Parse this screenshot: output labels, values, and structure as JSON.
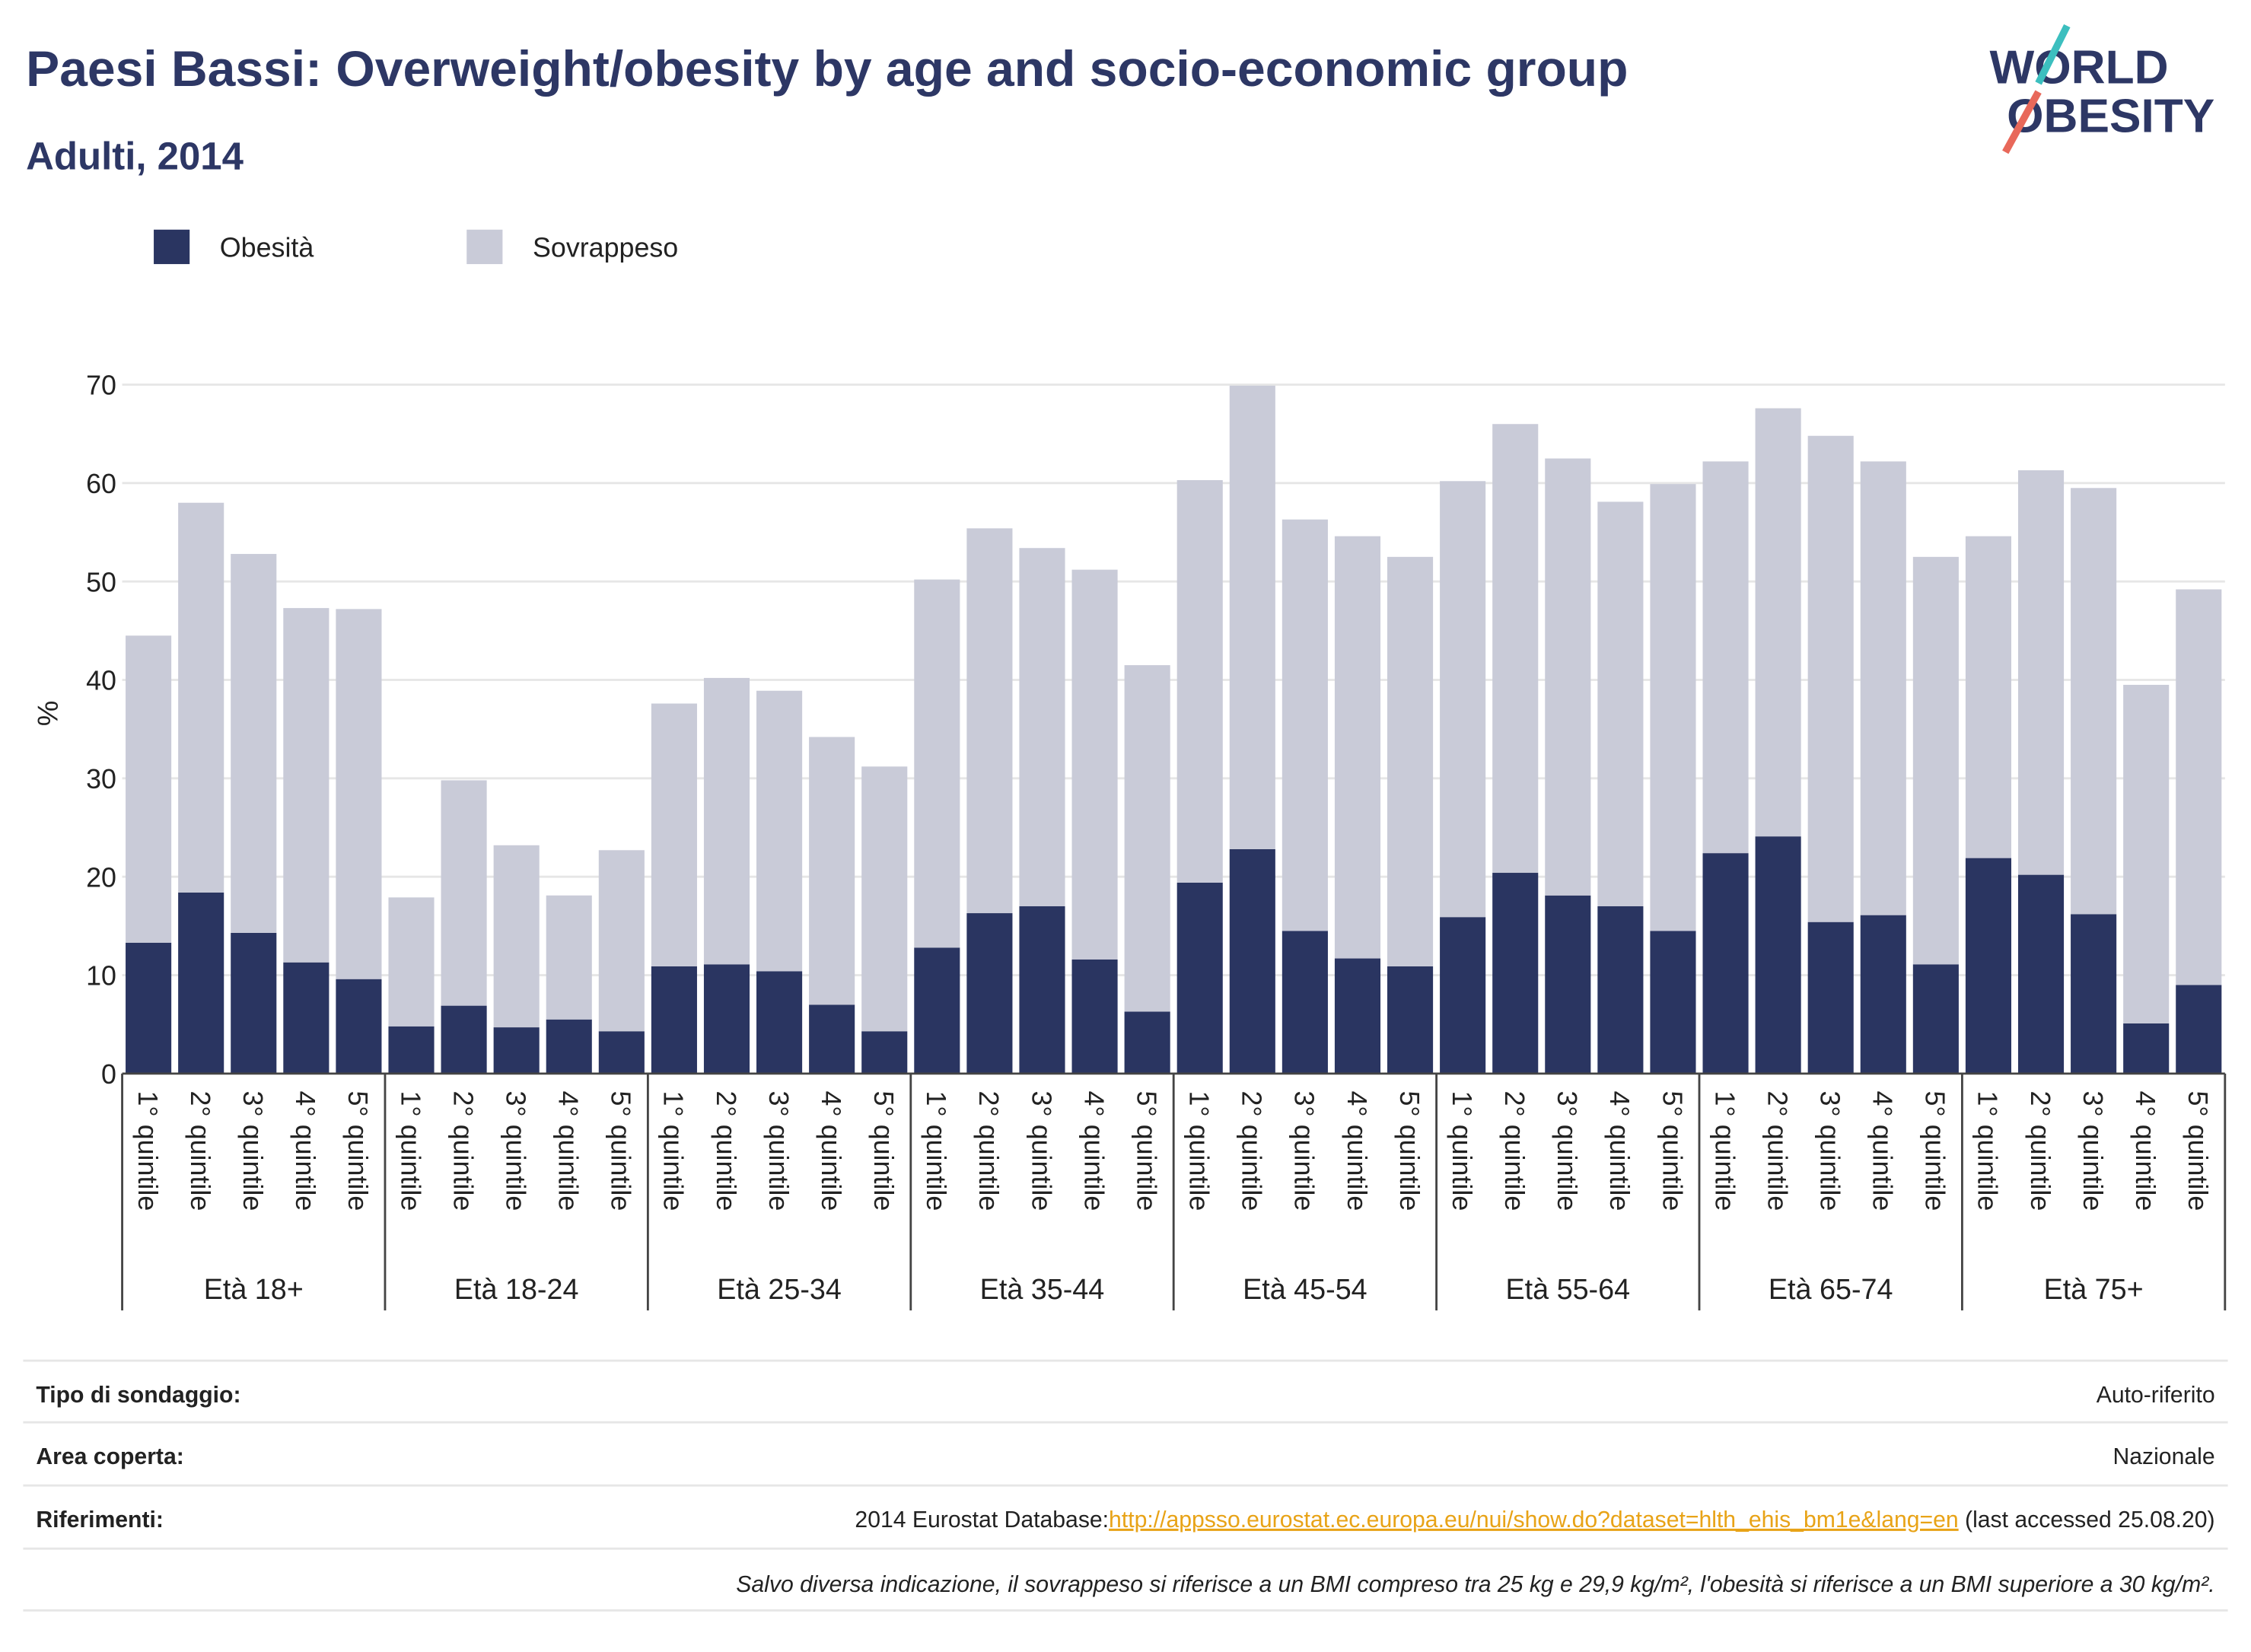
{
  "chart_data": {
    "type": "stacked-bar",
    "title": "Paesi Bassi: Overweight/obesity by age and socio-economic group",
    "subtitle": "Adulti, 2014",
    "logo": [
      "WORLD",
      "OBESITY"
    ],
    "y_label": "%",
    "categories": [
      "1° quintile",
      "2° quintile",
      "3° quintile",
      "4° quintile",
      "5° quintile",
      "1° quintile",
      "2° quintile",
      "3° quintile",
      "4° quintile",
      "5° quintile",
      "1° quintile",
      "2° quintile",
      "3° quintile",
      "4° quintile",
      "5° quintile",
      "1° quintile",
      "2° quintile",
      "3° quintile",
      "4° quintile",
      "5° quintile",
      "1° quintile",
      "2° quintile",
      "3° quintile",
      "4° quintile",
      "5° quintile",
      "1° quintile",
      "2° quintile",
      "3° quintile",
      "4° quintile",
      "5° quintile",
      "1° quintile",
      "2° quintile",
      "3° quintile",
      "4° quintile",
      "5° quintile",
      "1° quintile",
      "2° quintile",
      "3° quintile",
      "4° quintile",
      "5° quintile"
    ],
    "groups": [
      "Età 18+",
      "Età 18-24",
      "Età 25-34",
      "Età 35-44",
      "Età 45-54",
      "Età 55-64",
      "Età 65-74",
      "Età 75+"
    ],
    "series": [
      {
        "name": "Obesità",
        "color": "#2a3561",
        "values": [
          13.3,
          18.4,
          14.3,
          11.3,
          9.6,
          4.8,
          6.9,
          4.7,
          5.5,
          4.3,
          10.9,
          11.1,
          10.4,
          7.0,
          4.3,
          12.8,
          16.3,
          17.0,
          11.6,
          6.3,
          19.4,
          22.8,
          14.5,
          11.7,
          10.9,
          15.9,
          20.4,
          18.1,
          17.0,
          14.5,
          22.4,
          24.1,
          15.4,
          16.1,
          11.1,
          21.9,
          20.2,
          16.2,
          5.1,
          9.0
        ]
      },
      {
        "name": "Sovrappeso",
        "color": "#c9cbd8",
        "values": [
          31.2,
          39.6,
          38.5,
          36.0,
          37.6,
          13.1,
          22.9,
          18.5,
          12.6,
          18.4,
          26.7,
          29.1,
          28.5,
          27.2,
          26.9,
          37.4,
          39.1,
          36.4,
          39.6,
          35.2,
          40.9,
          47.1,
          41.8,
          42.9,
          41.6,
          44.3,
          45.6,
          44.4,
          41.1,
          45.4,
          39.8,
          43.5,
          49.4,
          46.1,
          41.4,
          32.7,
          41.1,
          43.3,
          34.4,
          40.2
        ]
      }
    ],
    "ylim": [
      0,
      70
    ],
    "yticks": [
      0,
      10,
      20,
      30,
      40,
      50,
      60,
      70
    ],
    "grid": true
  },
  "footer": {
    "rows": [
      {
        "label": "Tipo di sondaggio:",
        "value": "Auto-riferito"
      },
      {
        "label": "Area coperta:",
        "value": "Nazionale"
      },
      {
        "label": "Riferimenti:",
        "value": "2014 Eurostat Database:",
        "link": "http://appsso.eurostat.ec.europa.eu/nui/show.do?dataset=hlth_ehis_bm1e&lang=en",
        "suffix": " (last accessed 25.08.20)"
      }
    ],
    "note": "Salvo diversa indicazione, il sovrappeso si riferisce a un BMI compreso tra 25 kg e 29,9 kg/m², l'obesità si riferisce a un BMI superiore a 30 kg/m²."
  }
}
